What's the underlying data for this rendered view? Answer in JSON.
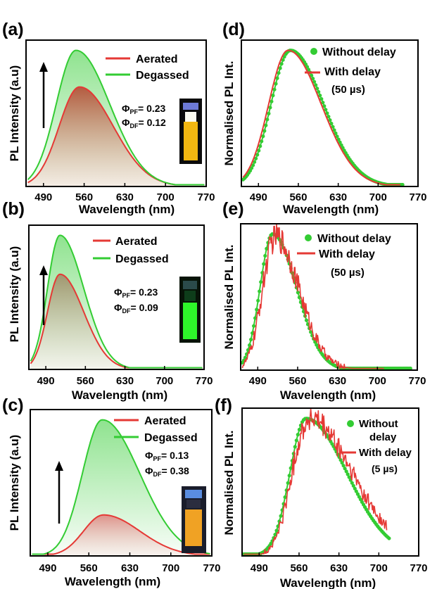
{
  "chart_data": [
    {
      "panel": "(a)",
      "type": "area",
      "xlim": [
        460,
        770
      ],
      "xticks": [
        490,
        560,
        630,
        700,
        770
      ],
      "xlabel": "Wavelength (nm)",
      "ylabel": "PL Intensity (a.u)",
      "series": [
        {
          "name": "Aerated",
          "color": "#e53935",
          "peak_x": 552,
          "peak_y": 0.68,
          "wl": 35,
          "wr": 58,
          "tail": 0.0,
          "fill": true,
          "noise": 0
        },
        {
          "name": "Degassed",
          "color": "#33cc33",
          "peak_x": 546,
          "peak_y": 0.93,
          "wl": 34,
          "wr": 58,
          "tail": 0.0,
          "fill": true,
          "noise": 0
        }
      ],
      "annotations": {
        "phi_pf": "0.23",
        "phi_df": "0.12",
        "vial": "yellow"
      }
    },
    {
      "panel": "(b)",
      "type": "area",
      "xlim": [
        460,
        770
      ],
      "xticks": [
        490,
        560,
        630,
        700,
        770
      ],
      "xlabel": "Wavelength (nm)",
      "ylabel": "PL Intensity (a.u)",
      "series": [
        {
          "name": "Aerated",
          "color": "#e53935",
          "peak_x": 515,
          "peak_y": 0.66,
          "wl": 22,
          "wr": 42,
          "tail": 0.0,
          "fill": true,
          "noise": 0
        },
        {
          "name": "Degassed",
          "color": "#33cc33",
          "peak_x": 515,
          "peak_y": 0.93,
          "wl": 22,
          "wr": 42,
          "tail": 0.0,
          "fill": true,
          "noise": 0
        }
      ],
      "annotations": {
        "phi_pf": "0.23",
        "phi_df": "0.09",
        "vial": "green"
      }
    },
    {
      "panel": "(c)",
      "type": "area",
      "xlim": [
        460,
        770
      ],
      "xticks": [
        490,
        560,
        630,
        700,
        770
      ],
      "xlabel": "Wavelength (nm)",
      "ylabel": "PL Intensity (a.u)",
      "series": [
        {
          "name": "Aerated",
          "color": "#e53935",
          "peak_x": 585,
          "peak_y": 0.28,
          "wl": 34,
          "wr": 62,
          "tail": 0.0,
          "fill": true,
          "noise": 0
        },
        {
          "name": "Degassed",
          "color": "#33cc33",
          "peak_x": 583,
          "peak_y": 0.93,
          "wl": 34,
          "wr": 64,
          "tail": 0.0,
          "fill": true,
          "noise": 0
        }
      ],
      "annotations": {
        "phi_pf": "0.13",
        "phi_df": "0.38",
        "vial": "orange"
      }
    },
    {
      "panel": "(d)",
      "type": "line",
      "xlim": [
        460,
        770
      ],
      "xticks": [
        490,
        560,
        630,
        700,
        770
      ],
      "xlabel": "Wavelength (nm)",
      "ylabel": "Normalised PL Int.",
      "series": [
        {
          "name": "Without delay",
          "color": "#33cc33",
          "peak_x": 546,
          "peak_y": 0.93,
          "wl": 34,
          "wr": 58,
          "tail": 0.0,
          "fill": false,
          "noise": 0,
          "markers": true,
          "xmax": 745
        },
        {
          "name": "With delay",
          "color": "#e53935",
          "peak_x": 542,
          "peak_y": 0.93,
          "wl": 34,
          "wr": 58,
          "tail": 0.0,
          "fill": false,
          "noise": 0,
          "markers": false,
          "xmax": 740
        }
      ],
      "annotations": {
        "delay": "(50 µs)"
      }
    },
    {
      "panel": "(e)",
      "type": "line",
      "xlim": [
        460,
        770
      ],
      "xticks": [
        490,
        560,
        630,
        700,
        770
      ],
      "xlabel": "Wavelength (nm)",
      "ylabel": "Normalised PL Int.",
      "series": [
        {
          "name": "Without delay",
          "color": "#33cc33",
          "peak_x": 516,
          "peak_y": 0.93,
          "wl": 22,
          "wr": 42,
          "tail": 0.0,
          "fill": false,
          "noise": 0,
          "markers": true,
          "xmax": 760
        },
        {
          "name": "With delay",
          "color": "#e53935",
          "peak_x": 520,
          "peak_y": 0.9,
          "wl": 22,
          "wr": 42,
          "tail": 0.02,
          "fill": false,
          "noise": 0.1,
          "markers": false,
          "xmax": 712
        }
      ],
      "annotations": {
        "delay": "(50 µs)"
      }
    },
    {
      "panel": "(f)",
      "type": "line",
      "xlim": [
        460,
        770
      ],
      "xticks": [
        490,
        560,
        630,
        700,
        770
      ],
      "xlabel": "Wavelength (nm)",
      "ylabel": "Normalised PL Int.",
      "series": [
        {
          "name": "Without delay",
          "color": "#33cc33",
          "peak_x": 572,
          "peak_y": 0.93,
          "wl": 28,
          "wr": 72,
          "tail": 0.0,
          "fill": false,
          "noise": 0,
          "markers": true,
          "xmax": 720
        },
        {
          "name": "With delay",
          "color": "#e53935",
          "peak_x": 575,
          "peak_y": 0.9,
          "wl": 28,
          "wr": 78,
          "tail": 0.03,
          "fill": false,
          "noise": 0.09,
          "markers": false,
          "xmax": 715
        }
      ],
      "annotations": {
        "delay": "(5 µs)"
      }
    }
  ],
  "labels": {
    "a": "(a)",
    "b": "(b)",
    "c": "(c)",
    "d": "(d)",
    "e": "(e)",
    "f": "(f)",
    "aerated": "Aerated",
    "degassed": "Degassed",
    "without_delay": "Without delay",
    "without": "Without",
    "delay_word": "delay",
    "with_delay": "With delay",
    "delay_50": "(50 µs)",
    "delay_5": "(5 µs)",
    "phi": "Φ",
    "pf": "PF",
    "df": "DF",
    "pf_a": "= 0.23",
    "df_a": "= 0.12",
    "pf_b": "= 0.23",
    "df_b": "= 0.09",
    "pf_c": "= 0.13",
    "df_c": "= 0.38",
    "xlabel": "Wavelength (nm)",
    "ylabel_left": "PL Intensity (a.u)",
    "ylabel_right": "Normalised PL Int.",
    "ticks": [
      "490",
      "560",
      "630",
      "700",
      "770"
    ]
  },
  "colors": {
    "aerated": "#e53935",
    "degassed": "#33cc33",
    "axis": "#000000",
    "vial_yellow": "#f2b711",
    "vial_green": "#2ef52a",
    "vial_orange": "#f0a224"
  }
}
